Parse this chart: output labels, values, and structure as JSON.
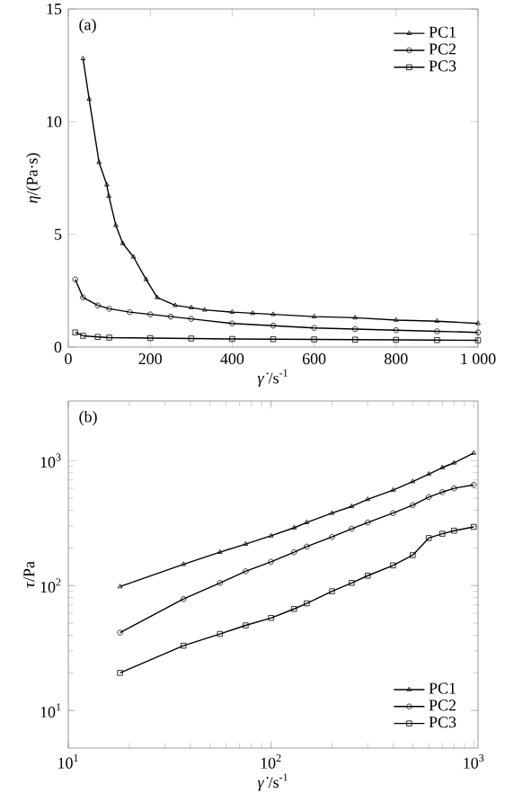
{
  "chart_data": [
    {
      "type": "line",
      "annotations": [
        "(a)"
      ],
      "xlabel": "*γ̇*/s$^{-1}$",
      "ylabel": "*η*/(Pa·s)",
      "xlim": [
        0,
        1000
      ],
      "ylim": [
        0,
        15
      ],
      "xticks": [
        0,
        200,
        400,
        600,
        800,
        {
          "value": 1000,
          "label": "1 000"
        }
      ],
      "yticks": [
        0,
        5,
        10,
        15
      ],
      "legend": "top right",
      "grid": false,
      "series": [
        {
          "name": "PC1",
          "color": "#000000",
          "marker": "triangle",
          "x": [
            36,
            51,
            75,
            94,
            99,
            116,
            133,
            159,
            190,
            217,
            261,
            300,
            333,
            400,
            450,
            500,
            600,
            700,
            800,
            900,
            1000
          ],
          "values": [
            12.8,
            11,
            8.2,
            7.2,
            6.7,
            5.4,
            4.6,
            4.0,
            3.0,
            2.2,
            1.85,
            1.75,
            1.65,
            1.55,
            1.5,
            1.45,
            1.35,
            1.3,
            1.2,
            1.15,
            1.05
          ]
        },
        {
          "name": "PC2",
          "color": "#000000",
          "marker": "circle",
          "x": [
            17,
            36,
            72,
            100,
            150,
            200,
            250,
            300,
            400,
            500,
            600,
            700,
            800,
            900,
            1000
          ],
          "values": [
            3.0,
            2.2,
            1.85,
            1.7,
            1.55,
            1.45,
            1.35,
            1.25,
            1.05,
            0.95,
            0.85,
            0.8,
            0.75,
            0.7,
            0.65
          ]
        },
        {
          "name": "PC3",
          "color": "#000000",
          "marker": "square",
          "x": [
            17,
            36,
            72,
            100,
            200,
            300,
            400,
            500,
            600,
            700,
            800,
            900,
            1000
          ],
          "values": [
            0.65,
            0.5,
            0.45,
            0.42,
            0.4,
            0.38,
            0.36,
            0.35,
            0.34,
            0.33,
            0.32,
            0.31,
            0.3
          ]
        }
      ]
    },
    {
      "type": "line",
      "annotations": [
        "(b)"
      ],
      "xlabel": "*γ̇*/s$^{-1}$",
      "ylabel": "*τ*/Pa",
      "log": "xy",
      "xlim": [
        10,
        1050
      ],
      "ylim": [
        5,
        3000
      ],
      "xticks": [
        {
          "value": 10,
          "label": "10$^{1}$"
        },
        {
          "value": 100,
          "label": "10$^{2}$"
        },
        {
          "value": 1000,
          "label": "10$^{3}$"
        }
      ],
      "yticks": [
        {
          "value": 10,
          "label": "10$^{1}$"
        },
        {
          "value": 100,
          "label": "10$^{2}$"
        },
        {
          "value": 1000,
          "label": "10$^{3}$"
        }
      ],
      "legend": "bottom right",
      "grid": false,
      "series": [
        {
          "name": "PC1",
          "color": "#000000",
          "marker": "triangle",
          "x": [
            18,
            37,
            56,
            75,
            100,
            130,
            150,
            200,
            250,
            300,
            400,
            500,
            600,
            700,
            800,
            1000
          ],
          "values": [
            98,
            148,
            185,
            215,
            250,
            290,
            320,
            380,
            430,
            490,
            580,
            680,
            780,
            880,
            960,
            1150
          ]
        },
        {
          "name": "PC2",
          "color": "#000000",
          "marker": "circle",
          "x": [
            18,
            37,
            56,
            75,
            100,
            130,
            150,
            200,
            250,
            300,
            400,
            500,
            600,
            700,
            800,
            1000
          ],
          "values": [
            42,
            78,
            105,
            130,
            155,
            185,
            205,
            245,
            285,
            320,
            380,
            440,
            510,
            560,
            600,
            640
          ]
        },
        {
          "name": "PC3",
          "color": "#000000",
          "marker": "square",
          "x": [
            18,
            37,
            56,
            75,
            100,
            130,
            150,
            200,
            250,
            300,
            400,
            500,
            600,
            700,
            800,
            1000
          ],
          "values": [
            20,
            33,
            41,
            48,
            55,
            65,
            72,
            90,
            105,
            120,
            145,
            175,
            240,
            260,
            275,
            295
          ]
        }
      ]
    }
  ]
}
